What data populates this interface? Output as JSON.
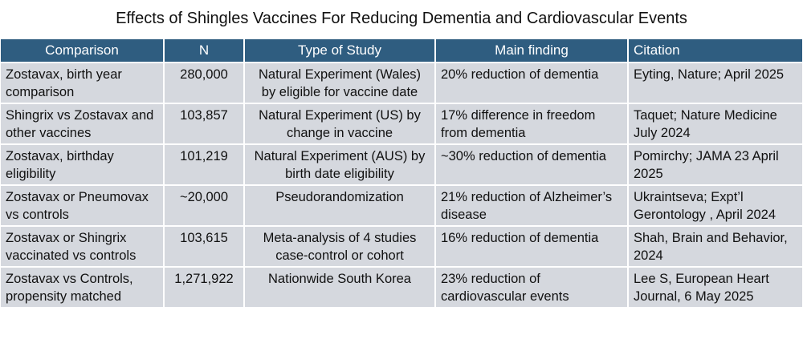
{
  "title": "Effects of Shingles Vaccines For Reducing Dementia and Cardiovascular Events",
  "table": {
    "headers": [
      "Comparison",
      "N",
      "Type of Study",
      "Main finding",
      "Citation"
    ],
    "rows": [
      [
        "Zostavax, birth year comparison",
        "280,000",
        "Natural Experiment (Wales) by eligible for vaccine date",
        "20% reduction of dementia",
        "Eyting, Nature; April 2025"
      ],
      [
        "Shingrix vs Zostavax and other vaccines",
        "103,857",
        "Natural Experiment (US) by change in vaccine",
        "17% difference in freedom from dementia",
        "Taquet; Nature Medicine July 2024"
      ],
      [
        "Zostavax, birthday eligibility",
        "101,219",
        "Natural Experiment (AUS) by birth date eligibility",
        "~30% reduction of dementia",
        "Pomirchy; JAMA 23 April 2025"
      ],
      [
        "Zostavax or Pneumovax vs controls",
        "~20,000",
        "Pseudorandomization",
        "21% reduction of Alzheimer’s disease",
        "Ukraintseva; Expt’l Gerontology , April 2024"
      ],
      [
        "Zostavax or Shingrix vaccinated vs controls",
        "103,615",
        "Meta-analysis of 4 studies case-control or cohort",
        "16% reduction of dementia",
        "Shah, Brain and Behavior, 2024"
      ],
      [
        "Zostavax vs Controls, propensity matched",
        "1,271,922",
        "Nationwide South Korea",
        "23% reduction of cardiovascular events",
        "Lee S, European Heart Journal, 6 May 2025"
      ]
    ]
  },
  "colors": {
    "header_bg": "#2f5d80",
    "row_bg": "#d5d8de",
    "header_text": "#ffffff"
  }
}
